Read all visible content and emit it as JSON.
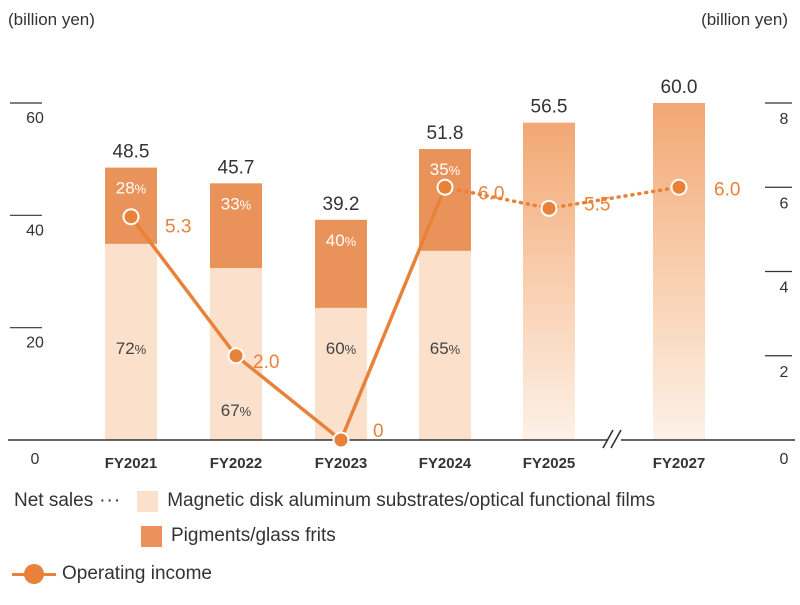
{
  "chart_data": {
    "type": "bar",
    "stacked": true,
    "left_axis_unit": "(billion yen)",
    "right_axis_unit": "(billion yen)",
    "left_axis": {
      "min": 0,
      "max": 60,
      "ticks": [
        0,
        20,
        40,
        60
      ]
    },
    "right_axis": {
      "min": 0,
      "max": 8,
      "ticks": [
        0,
        2,
        4,
        6,
        8
      ]
    },
    "categories": [
      "FY2021",
      "FY2022",
      "FY2023",
      "FY2024",
      "FY2025",
      "FY2027"
    ],
    "axis_break_between": [
      "FY2025",
      "FY2027"
    ],
    "net_sales_totals": [
      48.5,
      45.7,
      39.2,
      51.8,
      56.5,
      60.0
    ],
    "net_sales_totals_label": [
      "48.5",
      "45.7",
      "39.2",
      "51.8",
      "56.5",
      "60.0"
    ],
    "series": [
      {
        "name": "Magnetic disk aluminum substrates/optical functional films",
        "share_labels": [
          "72",
          "67",
          "60",
          "65",
          null,
          null
        ]
      },
      {
        "name": "Pigments/glass frits",
        "share_labels": [
          "28",
          "33",
          "40",
          "35",
          null,
          null
        ]
      }
    ],
    "forecast_categories": [
      "FY2025",
      "FY2027"
    ],
    "operating_income": {
      "name": "Operating income",
      "values": [
        5.3,
        2.0,
        0,
        6.0,
        5.5,
        6.0
      ],
      "labels": [
        "5.3",
        "2.0",
        "0",
        "6.0",
        "5.5",
        "6.0"
      ],
      "forecast_from_index": 3
    },
    "percent_symbol": "%"
  },
  "legend": {
    "prefix": "Net sales",
    "dots": "···",
    "item_1": "Magnetic disk aluminum substrates/optical functional films",
    "item_2": "Pigments/glass frits",
    "item_3": "Operating income"
  },
  "colors": {
    "light": "#FBE0CC",
    "dark": "#E9935A",
    "line": "#E8823A",
    "axis": "#333333"
  }
}
